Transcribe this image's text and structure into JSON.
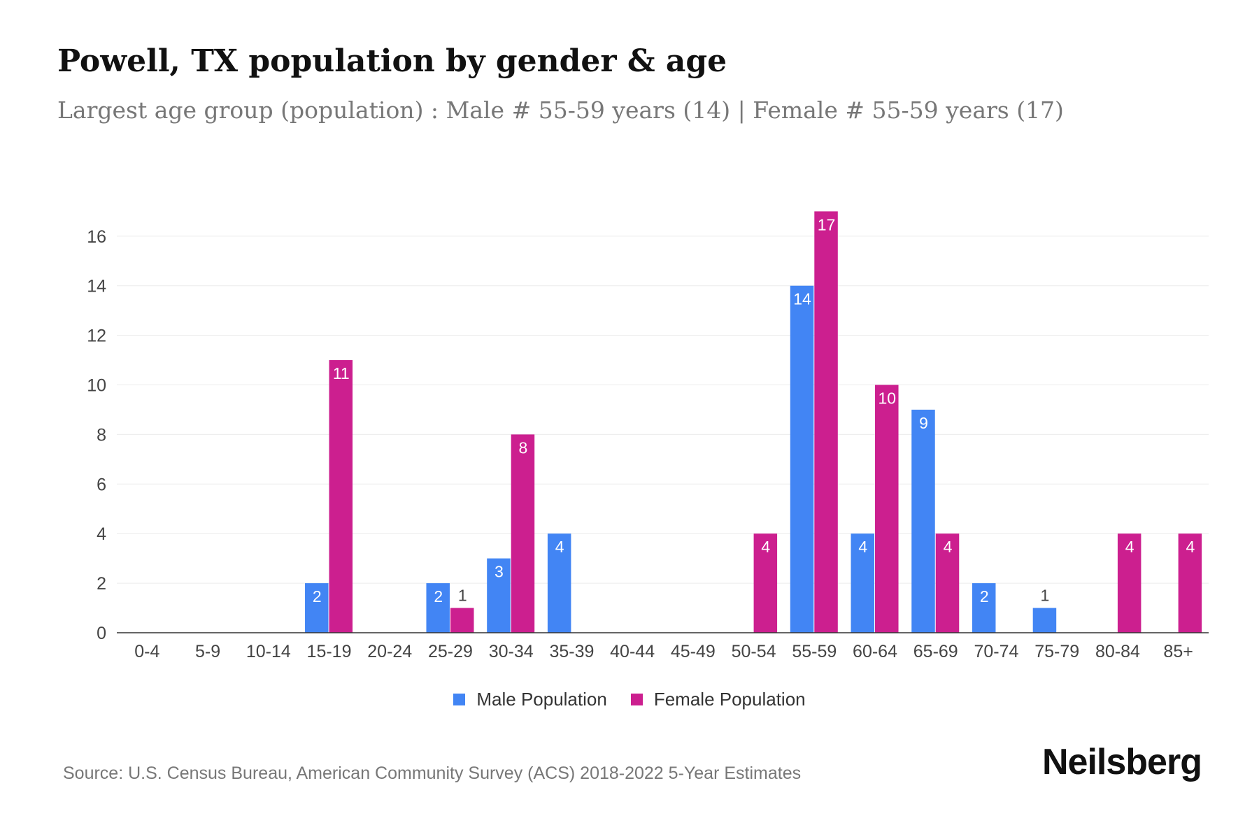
{
  "title": "Powell, TX population by gender & age",
  "subtitle": "Largest age group (population) : Male # 55-59 years (14) | Female # 55-59 years (17)",
  "source": "Source: U.S. Census Bureau, American Community Survey (ACS) 2018-2022 5-Year Estimates",
  "logo": "Neilsberg",
  "colors": {
    "male": "#4285f4",
    "female": "#cc1f8f"
  },
  "chart_data": {
    "type": "bar",
    "title": "Powell, TX population by gender & age",
    "xlabel": "",
    "ylabel": "",
    "ylim": [
      0,
      17
    ],
    "yticks": [
      0,
      2,
      4,
      6,
      8,
      10,
      12,
      14,
      16
    ],
    "grid": true,
    "legend_position": "bottom",
    "categories": [
      "0-4",
      "5-9",
      "10-14",
      "15-19",
      "20-24",
      "25-29",
      "30-34",
      "35-39",
      "40-44",
      "45-49",
      "50-54",
      "55-59",
      "60-64",
      "65-69",
      "70-74",
      "75-79",
      "80-84",
      "85+"
    ],
    "series": [
      {
        "name": "Male Population",
        "values": [
          0,
          0,
          0,
          2,
          0,
          2,
          3,
          4,
          0,
          0,
          0,
          14,
          4,
          9,
          2,
          1,
          0,
          0
        ]
      },
      {
        "name": "Female Population",
        "values": [
          0,
          0,
          0,
          11,
          0,
          1,
          8,
          0,
          0,
          0,
          4,
          17,
          10,
          4,
          0,
          0,
          4,
          4
        ]
      }
    ]
  }
}
